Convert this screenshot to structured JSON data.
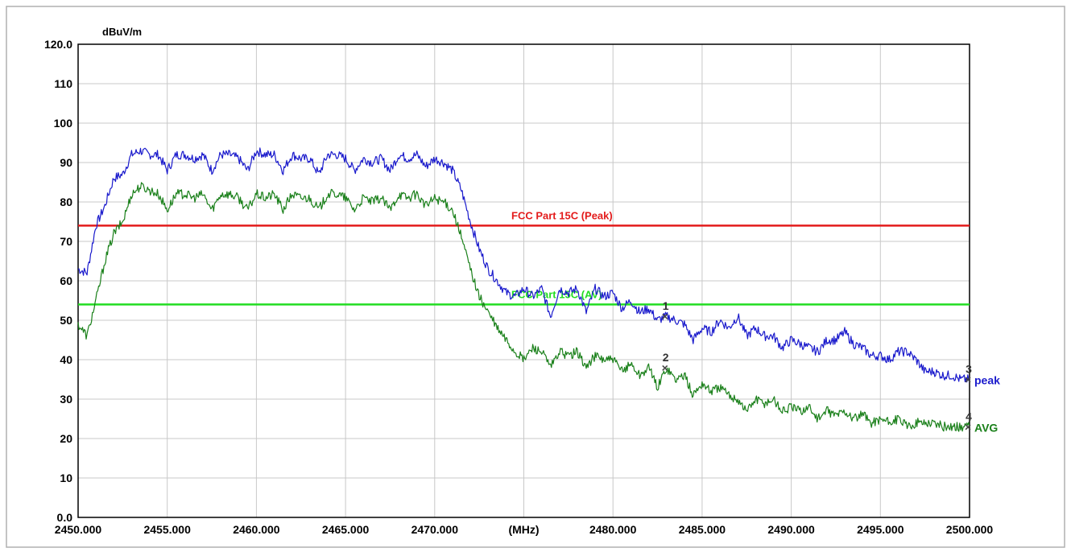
{
  "chart_data": {
    "type": "line",
    "title": "",
    "ylabel": "dBuV/m",
    "xlabel": "(MHz)",
    "xlim": [
      2450,
      2500
    ],
    "ylim": [
      0,
      120
    ],
    "y_ticks": [
      {
        "value": 120,
        "label": "120.0"
      },
      {
        "value": 110,
        "label": "110"
      },
      {
        "value": 100,
        "label": "100"
      },
      {
        "value": 90,
        "label": "90"
      },
      {
        "value": 80,
        "label": "80"
      },
      {
        "value": 70,
        "label": "70"
      },
      {
        "value": 60,
        "label": "60"
      },
      {
        "value": 50,
        "label": "50"
      },
      {
        "value": 40,
        "label": "40"
      },
      {
        "value": 30,
        "label": "30"
      },
      {
        "value": 20,
        "label": "20"
      },
      {
        "value": 10,
        "label": "10"
      },
      {
        "value": 0,
        "label": "0.0"
      }
    ],
    "x_ticks": [
      {
        "value": 2450,
        "label": "2450.000"
      },
      {
        "value": 2455,
        "label": "2455.000"
      },
      {
        "value": 2460,
        "label": "2460.000"
      },
      {
        "value": 2465,
        "label": "2465.000"
      },
      {
        "value": 2470,
        "label": "2470.000"
      },
      {
        "value": 2475,
        "label": "(MHz)"
      },
      {
        "value": 2480,
        "label": "2480.000"
      },
      {
        "value": 2485,
        "label": "2485.000"
      },
      {
        "value": 2490,
        "label": "2490.000"
      },
      {
        "value": 2495,
        "label": "2495.000"
      },
      {
        "value": 2500,
        "label": "2500.000"
      }
    ],
    "grid": true,
    "limit_lines": [
      {
        "label": "FCC Part 15C (Peak)",
        "value": 74,
        "color": "#e31b1b",
        "label_x": 2471
      },
      {
        "label": "FCC Part 15C (AV)",
        "value": 54,
        "color": "#22dd22",
        "label_x": 2471
      }
    ],
    "series": [
      {
        "color": "#1a1acc",
        "x": [
          2450.0,
          2450.5,
          2451.0,
          2451.5,
          2452.0,
          2452.5,
          2453.0,
          2453.5,
          2454.0,
          2454.5,
          2455.0,
          2455.5,
          2456.0,
          2456.5,
          2457.0,
          2457.5,
          2458.0,
          2458.5,
          2459.0,
          2459.5,
          2460.0,
          2460.5,
          2461.0,
          2461.5,
          2462.0,
          2462.5,
          2463.0,
          2463.5,
          2464.0,
          2464.5,
          2465.0,
          2465.5,
          2466.0,
          2466.5,
          2467.0,
          2467.5,
          2468.0,
          2468.5,
          2469.0,
          2469.5,
          2470.0,
          2470.5,
          2471.0,
          2471.5,
          2472.0,
          2472.5,
          2473.0,
          2473.5,
          2474.0,
          2474.5,
          2475.0,
          2475.5,
          2476.0,
          2476.5,
          2477.0,
          2477.5,
          2478.0,
          2478.5,
          2479.0,
          2479.5,
          2480.0,
          2480.5,
          2481.0,
          2481.5,
          2482.0,
          2482.5,
          2483.0,
          2483.5,
          2484.0,
          2484.5,
          2485.0,
          2485.5,
          2486.0,
          2486.5,
          2487.0,
          2487.5,
          2488.0,
          2488.5,
          2489.0,
          2489.5,
          2490.0,
          2490.5,
          2491.0,
          2491.5,
          2492.0,
          2492.5,
          2493.0,
          2493.5,
          2494.0,
          2494.5,
          2495.0,
          2495.5,
          2496.0,
          2496.5,
          2497.0,
          2497.5,
          2498.0,
          2498.5,
          2499.0,
          2499.5,
          2500.0
        ],
        "values": [
          63,
          62,
          74,
          79,
          86,
          87,
          92,
          93,
          92,
          92,
          88,
          92,
          92,
          91,
          92,
          88,
          92,
          92,
          91,
          88,
          93,
          92,
          92,
          88,
          92,
          91,
          91,
          87,
          92,
          92,
          91,
          88,
          91,
          90,
          91,
          88,
          92,
          91,
          92,
          89,
          91,
          90,
          88,
          83,
          75,
          68,
          63,
          60,
          57,
          56,
          58,
          56,
          58,
          51,
          58,
          57,
          58,
          52,
          58,
          56,
          57,
          53,
          55,
          52,
          53,
          50,
          51,
          50,
          49,
          45,
          48,
          47,
          50,
          48,
          51,
          46,
          48,
          46,
          46,
          43,
          45,
          44,
          43,
          42,
          45,
          45,
          47,
          44,
          43,
          41,
          41,
          40,
          42,
          42,
          40,
          37,
          37,
          36,
          36,
          35,
          35
        ]
      },
      {
        "color": "#1a801a",
        "x": [
          2450.0,
          2450.5,
          2451.0,
          2451.5,
          2452.0,
          2452.5,
          2453.0,
          2453.5,
          2454.0,
          2454.5,
          2455.0,
          2455.5,
          2456.0,
          2456.5,
          2457.0,
          2457.5,
          2458.0,
          2458.5,
          2459.0,
          2459.5,
          2460.0,
          2460.5,
          2461.0,
          2461.5,
          2462.0,
          2462.5,
          2463.0,
          2463.5,
          2464.0,
          2464.5,
          2465.0,
          2465.5,
          2466.0,
          2466.5,
          2467.0,
          2467.5,
          2468.0,
          2468.5,
          2469.0,
          2469.5,
          2470.0,
          2470.5,
          2471.0,
          2471.5,
          2472.0,
          2472.5,
          2473.0,
          2473.5,
          2474.0,
          2474.5,
          2475.0,
          2475.5,
          2476.0,
          2476.5,
          2477.0,
          2477.5,
          2478.0,
          2478.5,
          2479.0,
          2479.5,
          2480.0,
          2480.5,
          2481.0,
          2481.5,
          2482.0,
          2482.5,
          2483.0,
          2483.5,
          2484.0,
          2484.5,
          2485.0,
          2485.5,
          2486.0,
          2486.5,
          2487.0,
          2487.5,
          2488.0,
          2488.5,
          2489.0,
          2489.5,
          2490.0,
          2490.5,
          2491.0,
          2491.5,
          2492.0,
          2492.5,
          2493.0,
          2493.5,
          2494.0,
          2494.5,
          2495.0,
          2495.5,
          2496.0,
          2496.5,
          2497.0,
          2497.5,
          2498.0,
          2498.5,
          2499.0,
          2499.5,
          2500.0
        ],
        "values": [
          49,
          46,
          55,
          65,
          72,
          75,
          82,
          84,
          83,
          82,
          78,
          82,
          82,
          81,
          82,
          78,
          82,
          82,
          81,
          78,
          82,
          81,
          82,
          78,
          82,
          81,
          81,
          78,
          82,
          82,
          81,
          78,
          81,
          80,
          81,
          78,
          82,
          81,
          82,
          79,
          81,
          80,
          78,
          71,
          63,
          56,
          52,
          48,
          45,
          42,
          40,
          43,
          42,
          38,
          42,
          41,
          42,
          38,
          41,
          40,
          40,
          37,
          39,
          36,
          38,
          33,
          38,
          35,
          36,
          31,
          34,
          32,
          33,
          31,
          30,
          27,
          30,
          29,
          30,
          27,
          28,
          27,
          28,
          25,
          27,
          26,
          27,
          25,
          26,
          24,
          25,
          24,
          25,
          23,
          24,
          24,
          24,
          23,
          23,
          23,
          23
        ]
      }
    ],
    "markers": [
      {
        "label": "1",
        "x": 2483.0,
        "y": 51,
        "color": "#1a1acc"
      },
      {
        "label": "2",
        "x": 2483.0,
        "y": 38,
        "color": "#1a801a"
      },
      {
        "label": "3",
        "x": 2500.0,
        "y": 35,
        "color": "#1a1acc",
        "tag": "peak"
      },
      {
        "label": "4",
        "x": 2500.0,
        "y": 23,
        "color": "#1a801a",
        "tag": "AVG"
      }
    ]
  }
}
